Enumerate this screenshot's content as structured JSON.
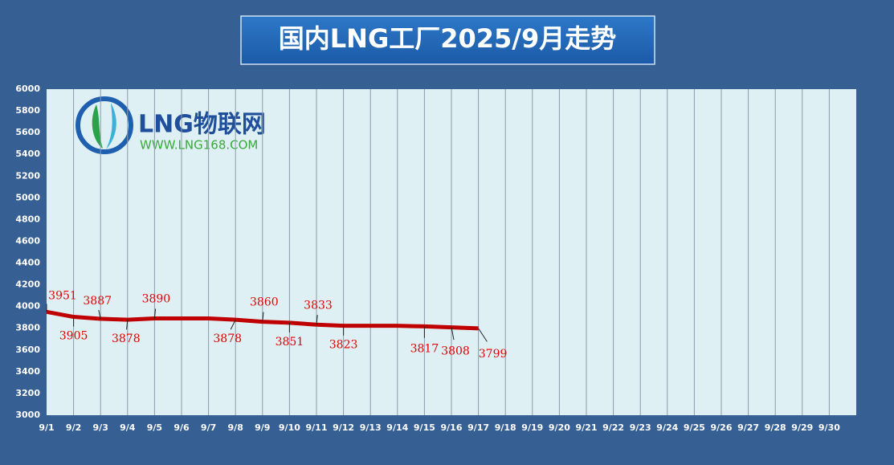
{
  "logo": {
    "name": "LNG物联网",
    "url": "WWW.LNG168.COM"
  },
  "chart_data": {
    "type": "line",
    "title": "国内LNG工厂2025/9月走势",
    "categories": [
      "9/1",
      "9/2",
      "9/3",
      "9/4",
      "9/5",
      "9/6",
      "9/7",
      "9/8",
      "9/9",
      "9/10",
      "9/11",
      "9/12",
      "9/13",
      "9/14",
      "9/15",
      "9/16",
      "9/17",
      "9/18",
      "9/19",
      "9/20",
      "9/21",
      "9/22",
      "9/23",
      "9/24",
      "9/25",
      "9/26",
      "9/27",
      "9/28",
      "9/29",
      "9/30"
    ],
    "series": [
      {
        "name": "LNG",
        "color": "#c00000",
        "values": [
          3951,
          3905,
          3887,
          3878,
          3890,
          3890,
          3890,
          3878,
          3860,
          3851,
          3833,
          3823,
          3823,
          3823,
          3817,
          3808,
          3799,
          null,
          null,
          null,
          null,
          null,
          null,
          null,
          null,
          null,
          null,
          null,
          null,
          null
        ],
        "value_labels": [
          "3951",
          "3905",
          "3887",
          "3878",
          "3890",
          null,
          null,
          "3878",
          "3860",
          "3851",
          "3833",
          "3823",
          null,
          null,
          "3817",
          "3808",
          "3799",
          null,
          null,
          null,
          null,
          null,
          null,
          null,
          null,
          null,
          null,
          null,
          null,
          null
        ]
      }
    ],
    "ylim": [
      3000,
      6000
    ],
    "yticks": [
      3000,
      3200,
      3400,
      3600,
      3800,
      4000,
      4200,
      4400,
      4600,
      4800,
      5000,
      5200,
      5400,
      5600,
      5800,
      6000
    ],
    "grid": true
  }
}
